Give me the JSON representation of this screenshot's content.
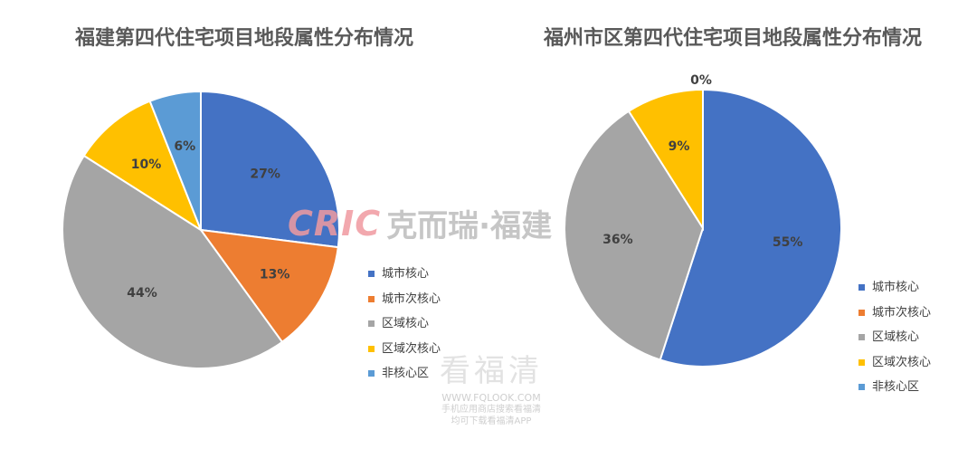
{
  "chart_data": [
    {
      "type": "pie",
      "title": "福建第四代住宅项目地段属性分布情况",
      "categories": [
        "城市核心",
        "城市次核心",
        "区域核心",
        "区域次核心",
        "非核心区"
      ],
      "values": [
        27,
        13,
        44,
        10,
        6
      ],
      "labels": [
        "27%",
        "13%",
        "44%",
        "10%",
        "6%"
      ],
      "colors": [
        "#4472C4",
        "#ED7D31",
        "#A5A5A5",
        "#FFC000",
        "#5B9BD5"
      ],
      "legend_position": "right"
    },
    {
      "type": "pie",
      "title": "福州市区第四代住宅项目地段属性分布情况",
      "categories": [
        "城市核心",
        "城市次核心",
        "区域核心",
        "区域次核心",
        "非核心区"
      ],
      "values": [
        55,
        0,
        36,
        9,
        0
      ],
      "labels": [
        "55%",
        "0%",
        "36%",
        "9%",
        "0%"
      ],
      "colors": [
        "#4472C4",
        "#ED7D31",
        "#A5A5A5",
        "#FFC000",
        "#5B9BD5"
      ],
      "legend_position": "right"
    }
  ],
  "watermark": {
    "logo": "CRIC",
    "text": "克而瑞·福建",
    "brand": "看福清",
    "url": "WWW.FQLOOK.COM",
    "line1": "手机应用商店搜索看福清",
    "line2": "均可下载看福清APP"
  }
}
